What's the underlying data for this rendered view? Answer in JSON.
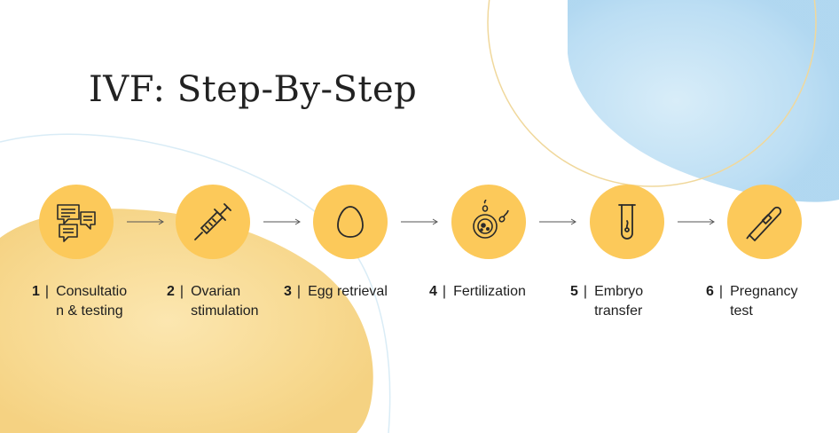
{
  "title": "IVF: Step-By-Step",
  "colors": {
    "circle": "#fcc95a",
    "blob_yellow": "#f7d98a",
    "blob_blue": "#b7dcf3",
    "outline": "#f2d58c"
  },
  "steps": [
    {
      "number": "1",
      "separator": "|",
      "label": "Consultatio\nn & testing",
      "icon": "chat-bubbles-icon"
    },
    {
      "number": "2",
      "separator": "|",
      "label": "Ovarian\nstimulation",
      "icon": "syringe-icon"
    },
    {
      "number": "3",
      "separator": "|",
      "label": "Egg retrieval",
      "icon": "egg-icon"
    },
    {
      "number": "4",
      "separator": "|",
      "label": "Fertilization",
      "icon": "sperm-egg-icon"
    },
    {
      "number": "5",
      "separator": "|",
      "label": "Embryo\ntransfer",
      "icon": "test-tube-icon"
    },
    {
      "number": "6",
      "separator": "|",
      "label": "Pregnancy\ntest",
      "icon": "pregnancy-test-icon"
    }
  ]
}
